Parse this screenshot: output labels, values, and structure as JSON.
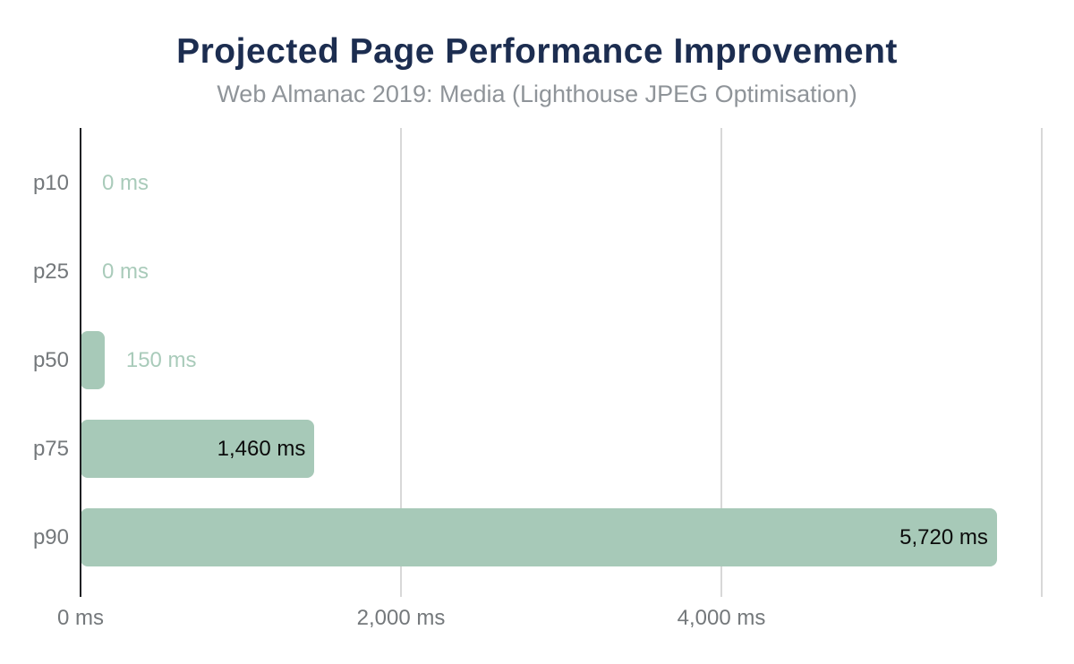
{
  "chart_data": {
    "type": "bar",
    "orientation": "horizontal",
    "title": "Projected Page Performance Improvement",
    "subtitle": "Web Almanac 2019: Media (Lighthouse JPEG Optimisation)",
    "categories": [
      "p10",
      "p25",
      "p50",
      "p75",
      "p90"
    ],
    "values": [
      0,
      0,
      150,
      1460,
      5720
    ],
    "value_labels": [
      "0 ms",
      "0 ms",
      "150 ms",
      "1,460 ms",
      "5,720 ms"
    ],
    "label_inside": [
      false,
      false,
      false,
      true,
      true
    ],
    "unit": "ms",
    "x_axis": {
      "min": 0,
      "max": 6000,
      "ticks": [
        {
          "value": 0,
          "label": "0 ms"
        },
        {
          "value": 2000,
          "label": "2,000 ms"
        },
        {
          "value": 4000,
          "label": "4,000 ms"
        },
        {
          "value": 6000,
          "label": ""
        }
      ]
    },
    "y_axis_label": "",
    "grid": true,
    "legend": false,
    "colors": {
      "bar_fill": "#a7c9b8",
      "value_label_outside": "#a9cbba",
      "value_label_inside": "#0b0b0b",
      "title_color": "#1c2d50",
      "subtitle_color": "#8f9499",
      "tick_label_color": "#74787b",
      "gridline": "#d8d8d8",
      "axis_line": "#202124",
      "background": "#ffffff"
    }
  }
}
